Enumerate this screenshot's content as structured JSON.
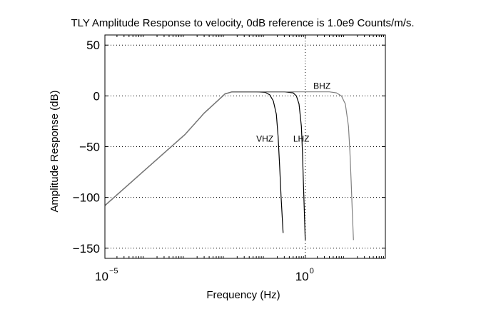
{
  "chart_data": {
    "type": "line",
    "title": "TLY Amplitude Response to velocity, 0dB reference is 1.0e9 Counts/m/s.",
    "xlabel": "Frequency (Hz)",
    "ylabel": "Amplitude Response (dB)",
    "x_scale": "log",
    "xlim": [
      1e-05,
      100
    ],
    "ylim": [
      -160,
      60
    ],
    "grid": true,
    "x_ticks": [
      {
        "base": "10",
        "exp": "−5",
        "value": 1e-05
      },
      {
        "base": "10",
        "exp": "0",
        "value": 1
      }
    ],
    "y_ticks": [
      {
        "label": "50",
        "value": 50
      },
      {
        "label": "0",
        "value": 0
      },
      {
        "label": "−50",
        "value": -50
      },
      {
        "label": "−100",
        "value": -100
      },
      {
        "label": "−150",
        "value": -150
      }
    ],
    "series": [
      {
        "name": "VHZ",
        "color": "#000000",
        "label_at": [
          0.06,
          -45
        ],
        "points": [
          [
            1e-05,
            -108
          ],
          [
            0.0001,
            -73
          ],
          [
            0.001,
            -38
          ],
          [
            0.003,
            -17
          ],
          [
            0.006,
            -6
          ],
          [
            0.01,
            2
          ],
          [
            0.015,
            4
          ],
          [
            0.03,
            4
          ],
          [
            0.06,
            4
          ],
          [
            0.1,
            3.5
          ],
          [
            0.13,
            1
          ],
          [
            0.16,
            -5
          ],
          [
            0.19,
            -18
          ],
          [
            0.21,
            -40
          ],
          [
            0.23,
            -70
          ],
          [
            0.25,
            -100
          ],
          [
            0.28,
            -135
          ]
        ]
      },
      {
        "name": "LHZ",
        "color": "#000000",
        "label_at": [
          0.5,
          -45
        ],
        "points": [
          [
            1e-05,
            -108
          ],
          [
            0.0001,
            -73
          ],
          [
            0.001,
            -38
          ],
          [
            0.003,
            -17
          ],
          [
            0.006,
            -6
          ],
          [
            0.01,
            2
          ],
          [
            0.015,
            4
          ],
          [
            0.1,
            4
          ],
          [
            0.3,
            4
          ],
          [
            0.5,
            3
          ],
          [
            0.6,
            0
          ],
          [
            0.7,
            -8
          ],
          [
            0.8,
            -30
          ],
          [
            0.85,
            -55
          ],
          [
            0.9,
            -85
          ],
          [
            0.95,
            -115
          ],
          [
            1.0,
            -142
          ]
        ]
      },
      {
        "name": "BHZ",
        "color": "#808080",
        "label_at": [
          1.6,
          7
        ],
        "points": [
          [
            1e-05,
            -108
          ],
          [
            0.0001,
            -73
          ],
          [
            0.001,
            -38
          ],
          [
            0.003,
            -17
          ],
          [
            0.006,
            -6
          ],
          [
            0.01,
            2
          ],
          [
            0.015,
            4
          ],
          [
            0.1,
            4
          ],
          [
            1,
            4
          ],
          [
            4,
            4
          ],
          [
            6,
            3
          ],
          [
            8,
            0
          ],
          [
            10,
            -8
          ],
          [
            12,
            -30
          ],
          [
            13,
            -55
          ],
          [
            14,
            -85
          ],
          [
            15,
            -115
          ],
          [
            16,
            -142
          ]
        ]
      }
    ]
  }
}
